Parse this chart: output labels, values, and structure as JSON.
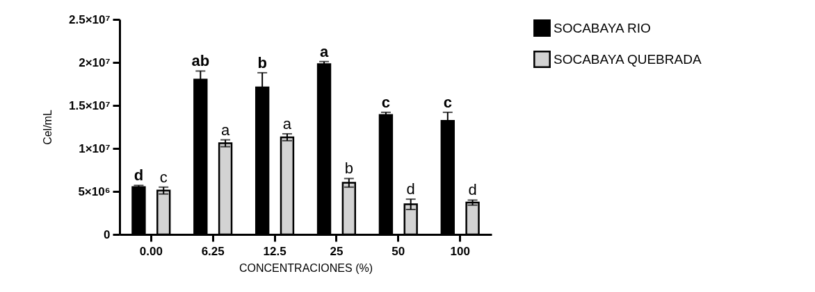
{
  "chart_data": {
    "type": "bar",
    "xlabel": "CONCENTRACIONES (%)",
    "ylabel": "Cel/mL",
    "categories": [
      "0.00",
      "6.25",
      "12.5",
      "25",
      "50",
      "100"
    ],
    "series": [
      {
        "name": "SOCABAYA RIO",
        "color": "#000000",
        "values": [
          5500000,
          18000000,
          17100000,
          19800000,
          13900000,
          13200000
        ],
        "errors": [
          200000,
          1000000,
          1700000,
          300000,
          300000,
          1000000
        ]
      },
      {
        "name": "SOCABAYA QUEBRADA",
        "color": "#d3d3d3",
        "values": [
          5100000,
          10600000,
          11300000,
          6000000,
          3500000,
          3700000
        ],
        "errors": [
          400000,
          400000,
          400000,
          500000,
          600000,
          300000
        ]
      }
    ],
    "ylim": [
      0,
      25000000
    ],
    "yticks": [
      0,
      {
        "value": 5000000,
        "label": "5×10⁶"
      },
      {
        "value": 10000000,
        "label": "1×10⁷"
      },
      {
        "value": 15000000,
        "label": "1.5×10⁷"
      },
      {
        "value": 20000000,
        "label": "2×10⁷"
      },
      {
        "value": 25000000,
        "label": "2.5×10⁷"
      }
    ],
    "grid": false,
    "legend": "top right",
    "annotations": [
      "d",
      "c",
      "ab",
      "a",
      "b",
      "a",
      "a",
      "b",
      "c",
      "d",
      "c",
      "d"
    ]
  }
}
